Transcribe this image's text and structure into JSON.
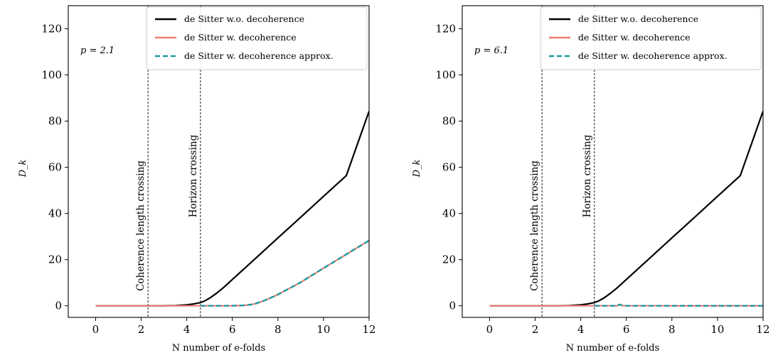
{
  "figure": {
    "background": "#ffffff"
  },
  "chart_data": [
    {
      "type": "line",
      "annotation": "p = 2.1",
      "xlabel": "N number of e-folds",
      "ylabel": "D_k",
      "xlim": [
        -1.2,
        12
      ],
      "ylim": [
        -5,
        130
      ],
      "xticks": [
        0,
        2,
        4,
        6,
        8,
        10,
        12
      ],
      "yticks": [
        0,
        20,
        40,
        60,
        80,
        100,
        120
      ],
      "grid": false,
      "legend": "top-right",
      "vlines": [
        {
          "x": 2.3,
          "label": "Coherence length crossing"
        },
        {
          "x": 4.6,
          "label": "Horizon crossing"
        }
      ],
      "series": [
        {
          "name": "de Sitter w.o. decoherence",
          "color": "#000000",
          "style": "solid",
          "x": [
            0,
            2,
            3,
            3.5,
            4,
            4.3,
            4.6,
            4.8,
            5.0,
            5.3,
            5.6,
            6.0,
            7,
            8,
            9,
            10,
            11,
            12
          ],
          "y": [
            0,
            0,
            0.05,
            0.15,
            0.4,
            0.8,
            1.4,
            2.2,
            3.3,
            5.4,
            7.8,
            11.4,
            20.4,
            29.4,
            38.4,
            47.4,
            56.4,
            84.3
          ]
        },
        {
          "name": "de Sitter w. decoherence",
          "color": "#f07f74",
          "style": "solid",
          "x": [
            0,
            4.6,
            5.5,
            6.0,
            6.5,
            6.8,
            7.0,
            7.3,
            7.6,
            8.0,
            9,
            10,
            11,
            12
          ],
          "y": [
            0,
            0,
            0,
            0.05,
            0.2,
            0.5,
            0.9,
            1.9,
            3.1,
            4.9,
            10.2,
            16.3,
            22.3,
            28.3
          ]
        },
        {
          "name": "de Sitter w. decoherence approx.",
          "color": "#1a9a9c",
          "style": "dashed",
          "x": [
            4.6,
            5.5,
            6.0,
            6.5,
            6.8,
            7.0,
            7.3,
            7.6,
            8.0,
            9,
            10,
            11,
            12
          ],
          "y": [
            0,
            0,
            0.05,
            0.2,
            0.5,
            0.9,
            1.9,
            3.1,
            4.9,
            10.2,
            16.3,
            22.3,
            28.3
          ]
        }
      ]
    },
    {
      "type": "line",
      "annotation": "p = 6.1",
      "xlabel": "N number of e-folds",
      "ylabel": "D_k",
      "xlim": [
        -1.2,
        12
      ],
      "ylim": [
        -5,
        130
      ],
      "xticks": [
        0,
        2,
        4,
        6,
        8,
        10,
        12
      ],
      "yticks": [
        0,
        20,
        40,
        60,
        80,
        100,
        120
      ],
      "grid": false,
      "legend": "top-right",
      "vlines": [
        {
          "x": 2.3,
          "label": "Coherence length crossing"
        },
        {
          "x": 4.6,
          "label": "Horizon crossing"
        }
      ],
      "series": [
        {
          "name": "de Sitter w.o. decoherence",
          "color": "#000000",
          "style": "solid",
          "x": [
            0,
            2,
            3,
            3.5,
            4,
            4.3,
            4.6,
            4.8,
            5.0,
            5.3,
            5.6,
            6.0,
            7,
            8,
            9,
            10,
            11,
            12
          ],
          "y": [
            0,
            0,
            0.05,
            0.15,
            0.4,
            0.8,
            1.4,
            2.2,
            3.3,
            5.4,
            7.8,
            11.4,
            20.4,
            29.4,
            38.4,
            47.4,
            56.4,
            84.3
          ]
        },
        {
          "name": "de Sitter w. decoherence",
          "color": "#f07f74",
          "style": "solid",
          "x": [
            0,
            4.6,
            5.6,
            5.7,
            5.8,
            5.9,
            12
          ],
          "y": [
            0,
            0,
            0,
            0.6,
            0.2,
            0,
            0
          ]
        },
        {
          "name": "de Sitter w. decoherence approx.",
          "color": "#1a9a9c",
          "style": "dashed",
          "x": [
            4.6,
            5.6,
            5.7,
            5.8,
            5.9,
            12
          ],
          "y": [
            0,
            0,
            0.6,
            0.2,
            0,
            0
          ]
        }
      ]
    }
  ]
}
